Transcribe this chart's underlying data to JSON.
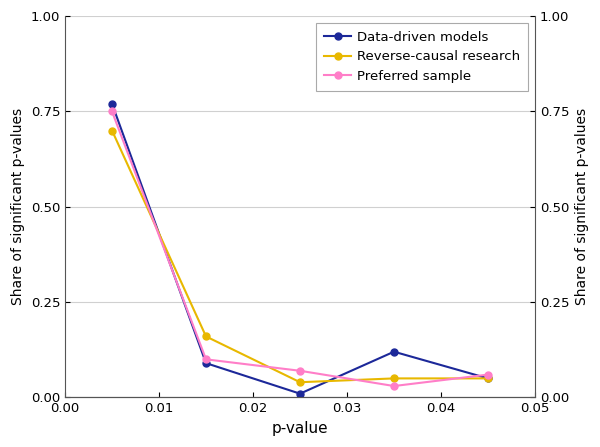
{
  "xlabel": "p-value",
  "ylabel_left": "Share of significant p-values",
  "ylabel_right": "Share of significant p-values",
  "x": [
    0.005,
    0.015,
    0.025,
    0.035,
    0.045
  ],
  "series": [
    {
      "label": "Data-driven models",
      "color": "#1c2899",
      "marker": "o",
      "markerface": "#1c2899",
      "y": [
        0.77,
        0.09,
        0.01,
        0.12,
        0.05
      ]
    },
    {
      "label": "Reverse-causal research",
      "color": "#e8b800",
      "marker": "o",
      "markerface": "#e8b800",
      "y": [
        0.7,
        0.16,
        0.04,
        0.05,
        0.05
      ]
    },
    {
      "label": "Preferred sample",
      "color": "#ff7ec8",
      "marker": "o",
      "markerface": "#ff7ec8",
      "y": [
        0.75,
        0.1,
        0.07,
        0.03,
        0.06
      ]
    }
  ],
  "xlim": [
    0.0,
    0.05
  ],
  "ylim": [
    0.0,
    1.0
  ],
  "xticks": [
    0.0,
    0.01,
    0.02,
    0.03,
    0.04,
    0.05
  ],
  "yticks": [
    0.0,
    0.25,
    0.5,
    0.75,
    1.0
  ],
  "grid_color": "#d0d0d0",
  "background_color": "#ffffff",
  "legend_loc": "upper right"
}
